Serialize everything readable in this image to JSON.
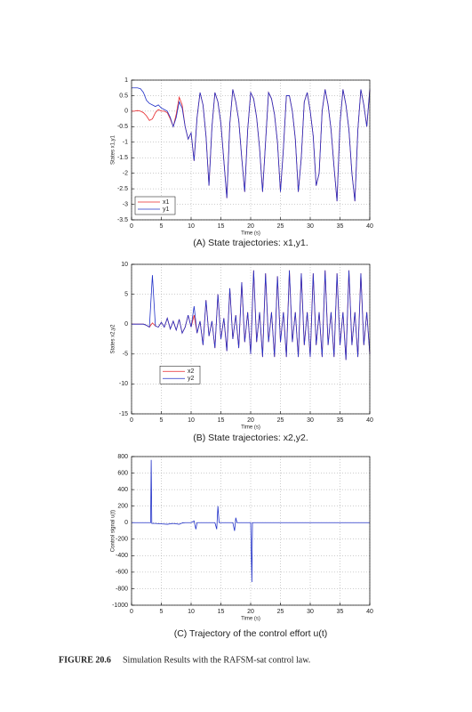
{
  "chart_data": [
    {
      "type": "line",
      "caption": "(A) State trajectories: x1,y1.",
      "xlabel": "Time (s)",
      "ylabel": "States x1,y1",
      "x": [
        0,
        0.5,
        1,
        1.5,
        2,
        2.5,
        3,
        3.5,
        4,
        4.5,
        5,
        5.5,
        6,
        6.5,
        7,
        7.5,
        8,
        8.5,
        9,
        9.5,
        10,
        10.5,
        11,
        11.5,
        12,
        12.5,
        13,
        13.5,
        14,
        14.5,
        15,
        15.5,
        16,
        16.5,
        17,
        17.5,
        18,
        18.5,
        19,
        19.5,
        20,
        20.5,
        21,
        21.5,
        22,
        22.5,
        23,
        23.5,
        24,
        24.5,
        25,
        25.5,
        26,
        26.5,
        27,
        27.5,
        28,
        28.5,
        29,
        29.5,
        30,
        30.5,
        31,
        31.5,
        32,
        32.5,
        33,
        33.5,
        34,
        34.5,
        35,
        35.5,
        36,
        36.5,
        37,
        37.5,
        38,
        38.5,
        39,
        39.5,
        40
      ],
      "series": [
        {
          "name": "x1",
          "color": "#e8262a",
          "values": [
            0,
            0,
            0.02,
            0,
            -0.05,
            -0.15,
            -0.3,
            -0.25,
            -0.05,
            0.05,
            0,
            0,
            -0.05,
            -0.25,
            -0.5,
            -0.1,
            0.45,
            0.2,
            -0.5,
            -0.9,
            -0.7,
            -1.6,
            -0.2,
            0.6,
            0.2,
            -0.8,
            -2.4,
            -0.5,
            0.6,
            0.3,
            -0.4,
            -1.6,
            -2.8,
            -0.4,
            0.7,
            0.3,
            -0.3,
            -1.5,
            -2.6,
            -0.6,
            0.6,
            0.4,
            -0.2,
            -1.2,
            -2.6,
            -1,
            0.6,
            0.4,
            -0.1,
            -1,
            -2.6,
            -1.2,
            0.5,
            0.5,
            0,
            -0.9,
            -2.6,
            -1.5,
            0.3,
            0.6,
            0,
            -0.8,
            -2.4,
            -2,
            0,
            0.7,
            0.2,
            -0.6,
            -1.8,
            -2.9,
            -0.4,
            0.7,
            0.2,
            -0.6,
            -2,
            -2.9,
            -0.6,
            0.7,
            0.2,
            -0.5,
            0.7
          ]
        },
        {
          "name": "y1",
          "color": "#2030c8",
          "values": [
            0.75,
            0.75,
            0.75,
            0.72,
            0.6,
            0.35,
            0.25,
            0.2,
            0.15,
            0.2,
            0.1,
            0.05,
            0,
            -0.2,
            -0.5,
            -0.2,
            0.3,
            0.1,
            -0.5,
            -0.9,
            -0.7,
            -1.6,
            -0.2,
            0.6,
            0.2,
            -0.8,
            -2.4,
            -0.5,
            0.6,
            0.3,
            -0.4,
            -1.6,
            -2.8,
            -0.4,
            0.7,
            0.3,
            -0.3,
            -1.5,
            -2.6,
            -0.6,
            0.6,
            0.4,
            -0.2,
            -1.2,
            -2.6,
            -1,
            0.6,
            0.4,
            -0.1,
            -1,
            -2.6,
            -1.2,
            0.5,
            0.5,
            0,
            -0.9,
            -2.6,
            -1.5,
            0.3,
            0.6,
            0,
            -0.8,
            -2.4,
            -2,
            0,
            0.7,
            0.2,
            -0.6,
            -1.8,
            -2.9,
            -0.4,
            0.7,
            0.2,
            -0.6,
            -2,
            -2.9,
            -0.6,
            0.7,
            0.2,
            -0.5,
            0.7
          ]
        }
      ],
      "xlim": [
        0,
        40
      ],
      "xticks": [
        0,
        5,
        10,
        15,
        20,
        25,
        30,
        35,
        40
      ],
      "ylim": [
        -3.5,
        1
      ],
      "yticks": [
        1,
        0.5,
        0,
        -0.5,
        -1,
        -1.5,
        -2,
        -2.5,
        -3,
        -3.5
      ],
      "grid": true,
      "legend": "lower left"
    },
    {
      "type": "line",
      "caption": "(B) State trajectories: x2,y2.",
      "xlabel": "Time (s)",
      "ylabel": "States x2,y2",
      "x": [
        0,
        0.5,
        1,
        1.5,
        2,
        2.5,
        3,
        3.5,
        4,
        4.5,
        5,
        5.5,
        6,
        6.5,
        7,
        7.5,
        8,
        8.5,
        9,
        9.5,
        10,
        10.5,
        11,
        11.5,
        12,
        12.5,
        13,
        13.5,
        14,
        14.5,
        15,
        15.5,
        16,
        16.5,
        17,
        17.5,
        18,
        18.5,
        19,
        19.5,
        20,
        20.5,
        21,
        21.5,
        22,
        22.5,
        23,
        23.5,
        24,
        24.5,
        25,
        25.5,
        26,
        26.5,
        27,
        27.5,
        28,
        28.5,
        29,
        29.5,
        30,
        30.5,
        31,
        31.5,
        32,
        32.5,
        33,
        33.5,
        34,
        34.5,
        35,
        35.5,
        36,
        36.5,
        37,
        37.5,
        38,
        38.5,
        39,
        39.5,
        40
      ],
      "series": [
        {
          "name": "x2",
          "color": "#e8262a",
          "values": [
            0,
            0,
            0,
            0,
            0,
            -0.2,
            -0.5,
            0.2,
            -0.3,
            -0.5,
            0.3,
            -0.5,
            1,
            -0.8,
            0.5,
            -1,
            0.8,
            -1.5,
            -0.5,
            1.5,
            -0.5,
            1.5,
            -1.5,
            0.5,
            -3.5,
            4,
            -2,
            0.5,
            -4,
            5,
            -2.5,
            1,
            -4.5,
            6,
            -2.5,
            1.5,
            -4,
            7,
            -3,
            2,
            -5,
            9,
            -3,
            2,
            -5.5,
            8.5,
            -3,
            2,
            -5.5,
            8,
            -3,
            2,
            -5.5,
            9,
            -3,
            2,
            -5.5,
            8.5,
            -3.5,
            2,
            -5.5,
            8.5,
            -3.5,
            2,
            -5.5,
            9,
            -3.5,
            2,
            -5.5,
            8.5,
            -3.5,
            2,
            -6,
            9,
            -3.5,
            2,
            -5.5,
            8.5,
            -3.5,
            2,
            -5
          ]
        },
        {
          "name": "y2",
          "color": "#2030c8",
          "values": [
            0,
            0,
            0,
            0,
            0,
            -0.2,
            -0.5,
            8.2,
            -0.3,
            -0.5,
            0.3,
            -0.5,
            1,
            -0.8,
            0.5,
            -1,
            0.8,
            -1.5,
            -0.5,
            1.5,
            -0.5,
            3,
            -1.5,
            0.5,
            -3.5,
            4,
            -2,
            0.5,
            -4,
            5,
            -2.5,
            1,
            -4.5,
            6,
            -2.5,
            1.5,
            -4,
            7,
            -3,
            2,
            -5,
            9,
            -3,
            2,
            -5.5,
            8.5,
            -3,
            2,
            -5.5,
            8,
            -3,
            2,
            -5.5,
            9,
            -3,
            2,
            -5.5,
            8.5,
            -3.5,
            2,
            -5.5,
            8.5,
            -3.5,
            2,
            -5.5,
            9,
            -3.5,
            2,
            -5.5,
            8.5,
            -3.5,
            2,
            -6,
            9,
            -3.5,
            2,
            -5.5,
            8.5,
            -3.5,
            2,
            -5
          ]
        }
      ],
      "xlim": [
        0,
        40
      ],
      "xticks": [
        0,
        5,
        10,
        15,
        20,
        25,
        30,
        35,
        40
      ],
      "ylim": [
        -15,
        10
      ],
      "yticks": [
        10,
        5,
        0,
        -5,
        -10,
        -15
      ],
      "grid": true,
      "legend": "center left"
    },
    {
      "type": "line",
      "caption": "(C) Trajectory of the control effort u(t)",
      "xlabel": "Time (s)",
      "ylabel": "Control signal u(t)",
      "x": [
        0,
        3.2,
        3.3,
        3.4,
        4,
        5,
        6,
        7,
        8,
        8.5,
        9,
        10,
        10.5,
        10.8,
        11,
        14,
        14.3,
        14.5,
        14.7,
        17,
        17.3,
        17.5,
        17.7,
        20,
        20.2,
        20.3,
        40
      ],
      "values": [
        0,
        0,
        760,
        -10,
        -10,
        -15,
        -20,
        -10,
        -20,
        -5,
        0,
        0,
        20,
        -80,
        0,
        0,
        -80,
        200,
        0,
        0,
        -100,
        60,
        0,
        0,
        -720,
        0,
        0
      ],
      "color": "#2030c8",
      "xlim": [
        0,
        40
      ],
      "xticks": [
        0,
        5,
        10,
        15,
        20,
        25,
        30,
        35,
        40
      ],
      "ylim": [
        -1000,
        800
      ],
      "yticks": [
        800,
        600,
        400,
        200,
        0,
        -200,
        -400,
        -600,
        -800,
        -1000
      ],
      "grid": true
    }
  ],
  "figure_caption": {
    "label": "FIGURE 20.6",
    "text": "Simulation Results with the RAFSM-sat control law."
  }
}
